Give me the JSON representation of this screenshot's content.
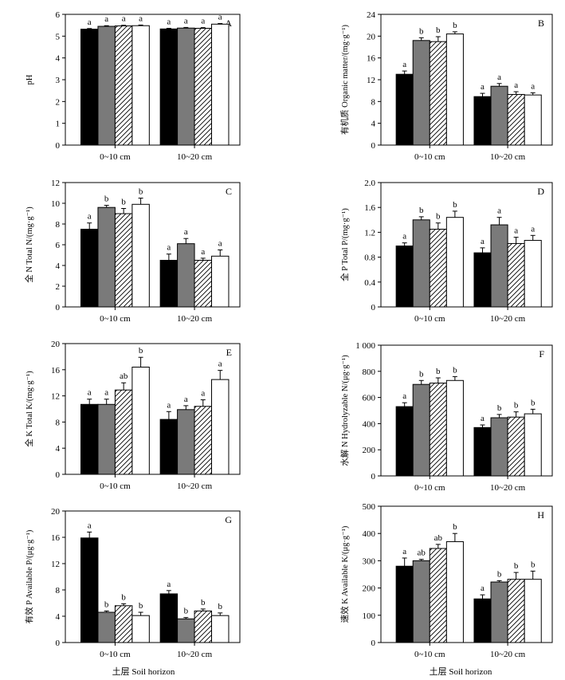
{
  "figure": {
    "x_caption": "土层  Soil horizon"
  },
  "chart_data": [
    {
      "type": "bar",
      "panel": "A",
      "ylabel": "pH",
      "ylim": [
        0,
        6
      ],
      "yticks": [
        "0",
        "1",
        "2",
        "3",
        "4",
        "5",
        "6"
      ],
      "categories": [
        "0~10 cm",
        "10~20 cm"
      ],
      "series": [
        {
          "fill": "#000000",
          "values": [
            5.32,
            5.33
          ],
          "errors": [
            0.03,
            0.03
          ],
          "letters": [
            "a",
            "a"
          ]
        },
        {
          "fill": "#7a7a7a",
          "values": [
            5.45,
            5.37
          ],
          "errors": [
            0.03,
            0.03
          ],
          "letters": [
            "a",
            "a"
          ]
        },
        {
          "fill": "hatch",
          "values": [
            5.47,
            5.36
          ],
          "errors": [
            0.03,
            0.03
          ],
          "letters": [
            "a",
            "a"
          ]
        },
        {
          "fill": "#ffffff",
          "values": [
            5.48,
            5.55
          ],
          "errors": [
            0.03,
            0.03
          ],
          "letters": [
            "a",
            "a"
          ]
        }
      ]
    },
    {
      "type": "bar",
      "panel": "B",
      "ylabel": "有机质  Organic matter/(mg·g⁻¹)",
      "ylim": [
        0,
        24
      ],
      "yticks": [
        "0",
        "4",
        "8",
        "12",
        "16",
        "20",
        "24"
      ],
      "categories": [
        "0~10 cm",
        "10~20 cm"
      ],
      "series": [
        {
          "fill": "#000000",
          "values": [
            13.0,
            8.9
          ],
          "errors": [
            0.6,
            0.6
          ],
          "letters": [
            "a",
            "a"
          ]
        },
        {
          "fill": "#7a7a7a",
          "values": [
            19.2,
            10.8
          ],
          "errors": [
            0.5,
            0.5
          ],
          "letters": [
            "b",
            "a"
          ]
        },
        {
          "fill": "hatch",
          "values": [
            19.0,
            9.3
          ],
          "errors": [
            0.9,
            0.5
          ],
          "letters": [
            "b",
            "a"
          ]
        },
        {
          "fill": "#ffffff",
          "values": [
            20.4,
            9.2
          ],
          "errors": [
            0.4,
            0.4
          ],
          "letters": [
            "b",
            "a"
          ]
        }
      ]
    },
    {
      "type": "bar",
      "panel": "C",
      "ylabel": "全 N  Total N/(mg·g⁻¹)",
      "ylim": [
        0,
        12
      ],
      "yticks": [
        "0",
        "2",
        "4",
        "6",
        "8",
        "10",
        "12"
      ],
      "categories": [
        "0~10 cm",
        "10~20 cm"
      ],
      "series": [
        {
          "fill": "#000000",
          "values": [
            7.5,
            4.5
          ],
          "errors": [
            0.6,
            0.6
          ],
          "letters": [
            "a",
            "a"
          ]
        },
        {
          "fill": "#7a7a7a",
          "values": [
            9.6,
            6.1
          ],
          "errors": [
            0.2,
            0.5
          ],
          "letters": [
            "b",
            "a"
          ]
        },
        {
          "fill": "hatch",
          "values": [
            9.0,
            4.5
          ],
          "errors": [
            0.5,
            0.2
          ],
          "letters": [
            "b",
            "a"
          ]
        },
        {
          "fill": "#ffffff",
          "values": [
            9.9,
            4.9
          ],
          "errors": [
            0.6,
            0.6
          ],
          "letters": [
            "b",
            "a"
          ]
        }
      ]
    },
    {
      "type": "bar",
      "panel": "D",
      "ylabel": "全 P  Total P/(mg·g⁻¹)",
      "ylim": [
        0,
        2.0
      ],
      "yticks": [
        "0",
        "0.4",
        "0.8",
        "1.2",
        "1.6",
        "2.0"
      ],
      "categories": [
        "0~10 cm",
        "10~20 cm"
      ],
      "series": [
        {
          "fill": "#000000",
          "values": [
            0.98,
            0.87
          ],
          "errors": [
            0.05,
            0.08
          ],
          "letters": [
            "a",
            "a"
          ]
        },
        {
          "fill": "#7a7a7a",
          "values": [
            1.4,
            1.32
          ],
          "errors": [
            0.05,
            0.12
          ],
          "letters": [
            "b",
            "a"
          ]
        },
        {
          "fill": "hatch",
          "values": [
            1.25,
            1.02
          ],
          "errors": [
            0.1,
            0.1
          ],
          "letters": [
            "b",
            "a"
          ]
        },
        {
          "fill": "#ffffff",
          "values": [
            1.44,
            1.07
          ],
          "errors": [
            0.1,
            0.08
          ],
          "letters": [
            "b",
            "a"
          ]
        }
      ]
    },
    {
      "type": "bar",
      "panel": "E",
      "ylabel": "全 K  Total K/(mg·g⁻¹)",
      "ylim": [
        0,
        20
      ],
      "yticks": [
        "0",
        "4",
        "8",
        "12",
        "16",
        "20"
      ],
      "categories": [
        "0~10 cm",
        "10~20 cm"
      ],
      "series": [
        {
          "fill": "#000000",
          "values": [
            10.7,
            8.4
          ],
          "errors": [
            0.8,
            1.2
          ],
          "letters": [
            "a",
            "a"
          ]
        },
        {
          "fill": "#7a7a7a",
          "values": [
            10.7,
            9.9
          ],
          "errors": [
            0.8,
            0.6
          ],
          "letters": [
            "a",
            "a"
          ]
        },
        {
          "fill": "hatch",
          "values": [
            12.9,
            10.4
          ],
          "errors": [
            1.1,
            1.0
          ],
          "letters": [
            "ab",
            "a"
          ]
        },
        {
          "fill": "#ffffff",
          "values": [
            16.4,
            14.5
          ],
          "errors": [
            1.5,
            1.4
          ],
          "letters": [
            "b",
            "a"
          ]
        }
      ]
    },
    {
      "type": "bar",
      "panel": "F",
      "ylabel": "水解 N  Hydrolyzable N/(μg·g⁻¹)",
      "ylim": [
        0,
        1000
      ],
      "yticks": [
        "0",
        "200",
        "400",
        "600",
        "800",
        "1 000"
      ],
      "categories": [
        "0~10 cm",
        "10~20 cm"
      ],
      "series": [
        {
          "fill": "#000000",
          "values": [
            530,
            370
          ],
          "errors": [
            30,
            20
          ],
          "letters": [
            "a",
            "a"
          ]
        },
        {
          "fill": "#7a7a7a",
          "values": [
            700,
            445
          ],
          "errors": [
            30,
            25
          ],
          "letters": [
            "b",
            "b"
          ]
        },
        {
          "fill": "hatch",
          "values": [
            710,
            450
          ],
          "errors": [
            40,
            40
          ],
          "letters": [
            "b",
            "b"
          ]
        },
        {
          "fill": "#ffffff",
          "values": [
            730,
            475
          ],
          "errors": [
            30,
            35
          ],
          "letters": [
            "b",
            "b"
          ]
        }
      ]
    },
    {
      "type": "bar",
      "panel": "G",
      "ylabel": "有效 P  Available P/(μg·g⁻¹)",
      "ylim": [
        0,
        20
      ],
      "yticks": [
        "0",
        "4",
        "8",
        "12",
        "16",
        "20"
      ],
      "categories": [
        "0~10 cm",
        "10~20 cm"
      ],
      "series": [
        {
          "fill": "#000000",
          "values": [
            15.9,
            7.4
          ],
          "errors": [
            0.9,
            0.5
          ],
          "letters": [
            "a",
            "a"
          ]
        },
        {
          "fill": "#7a7a7a",
          "values": [
            4.6,
            3.6
          ],
          "errors": [
            0.2,
            0.2
          ],
          "letters": [
            "b",
            "b"
          ]
        },
        {
          "fill": "hatch",
          "values": [
            5.6,
            4.8
          ],
          "errors": [
            0.3,
            0.3
          ],
          "letters": [
            "b",
            "b"
          ]
        },
        {
          "fill": "#ffffff",
          "values": [
            4.1,
            4.1
          ],
          "errors": [
            0.5,
            0.4
          ],
          "letters": [
            "b",
            "b"
          ]
        }
      ]
    },
    {
      "type": "bar",
      "panel": "H",
      "ylabel": "速效 K  Available K/(μg·g⁻¹)",
      "ylim": [
        0,
        500
      ],
      "yticks": [
        "0",
        "100",
        "200",
        "300",
        "400",
        "500"
      ],
      "categories": [
        "0~10 cm",
        "10~20 cm"
      ],
      "series": [
        {
          "fill": "#000000",
          "values": [
            280,
            160
          ],
          "errors": [
            30,
            15
          ],
          "letters": [
            "a",
            "a"
          ]
        },
        {
          "fill": "#7a7a7a",
          "values": [
            300,
            222
          ],
          "errors": [
            5,
            5
          ],
          "letters": [
            "ab",
            "b"
          ]
        },
        {
          "fill": "hatch",
          "values": [
            345,
            232
          ],
          "errors": [
            15,
            25
          ],
          "letters": [
            "ab",
            "b"
          ]
        },
        {
          "fill": "#ffffff",
          "values": [
            370,
            232
          ],
          "errors": [
            30,
            30
          ],
          "letters": [
            "b",
            "b"
          ]
        }
      ]
    }
  ]
}
